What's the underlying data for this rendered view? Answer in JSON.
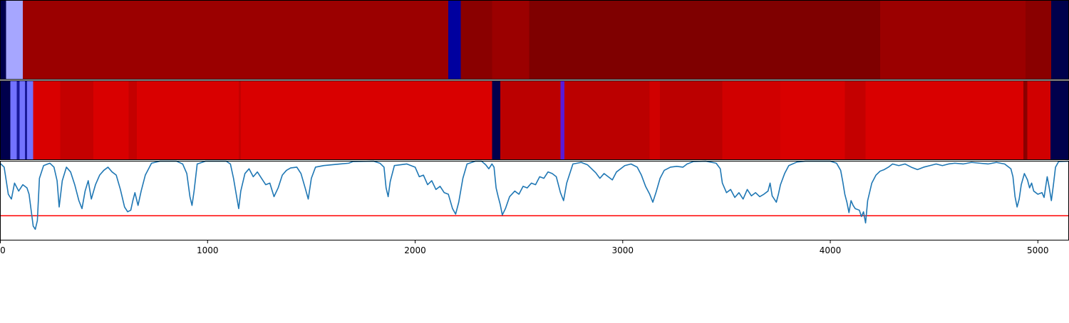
{
  "chart_data": {
    "type": "heatmap",
    "xlim": [
      0,
      5150
    ],
    "x_ticks": [
      "0",
      "1000",
      "2000",
      "3000",
      "4000",
      "5000"
    ],
    "tracks": [
      {
        "name": "",
        "segments": [
          {
            "start": 0,
            "end": 30,
            "color": "#00004c"
          },
          {
            "start": 30,
            "end": 110,
            "color": "#a6a6ff"
          },
          {
            "start": 110,
            "end": 2160,
            "color": "#9b0000"
          },
          {
            "start": 2160,
            "end": 2220,
            "color": "#00009f"
          },
          {
            "start": 2220,
            "end": 2370,
            "color": "#8a0000"
          },
          {
            "start": 2370,
            "end": 2550,
            "color": "#9b0000"
          },
          {
            "start": 2550,
            "end": 4240,
            "color": "#7f0000"
          },
          {
            "start": 4240,
            "end": 4940,
            "color": "#9b0000"
          },
          {
            "start": 4940,
            "end": 5065,
            "color": "#8a0000"
          },
          {
            "start": 5065,
            "end": 5150,
            "color": "#00004c"
          }
        ]
      },
      {
        "name": "",
        "segments": [
          {
            "start": 0,
            "end": 50,
            "color": "#00004c"
          },
          {
            "start": 50,
            "end": 80,
            "color": "#7373ff"
          },
          {
            "start": 80,
            "end": 95,
            "color": "#1a1a9a"
          },
          {
            "start": 95,
            "end": 120,
            "color": "#7373ff"
          },
          {
            "start": 120,
            "end": 130,
            "color": "#1a1a9a"
          },
          {
            "start": 130,
            "end": 160,
            "color": "#7373ff"
          },
          {
            "start": 160,
            "end": 290,
            "color": "#d90000"
          },
          {
            "start": 290,
            "end": 450,
            "color": "#c40000"
          },
          {
            "start": 450,
            "end": 620,
            "color": "#d90000"
          },
          {
            "start": 620,
            "end": 660,
            "color": "#c40000"
          },
          {
            "start": 660,
            "end": 1150,
            "color": "#d90000"
          },
          {
            "start": 1150,
            "end": 1160,
            "color": "#c40000"
          },
          {
            "start": 1160,
            "end": 2370,
            "color": "#d90000"
          },
          {
            "start": 2370,
            "end": 2410,
            "color": "#00004c"
          },
          {
            "start": 2410,
            "end": 2700,
            "color": "#bb0000"
          },
          {
            "start": 2700,
            "end": 2720,
            "color": "#5a1ad8"
          },
          {
            "start": 2720,
            "end": 3130,
            "color": "#bb0000"
          },
          {
            "start": 3130,
            "end": 3180,
            "color": "#d00000"
          },
          {
            "start": 3180,
            "end": 3480,
            "color": "#bb0000"
          },
          {
            "start": 3480,
            "end": 3760,
            "color": "#d00000"
          },
          {
            "start": 3760,
            "end": 4070,
            "color": "#d90000"
          },
          {
            "start": 4070,
            "end": 4170,
            "color": "#c40000"
          },
          {
            "start": 4170,
            "end": 4930,
            "color": "#d90000"
          },
          {
            "start": 4930,
            "end": 4950,
            "color": "#8a0000"
          },
          {
            "start": 4950,
            "end": 5060,
            "color": "#d00000"
          },
          {
            "start": 5060,
            "end": 5150,
            "color": "#00004c"
          }
        ]
      }
    ],
    "line": {
      "color": "#1f77b4",
      "ylim": [
        0,
        1
      ],
      "threshold": 0.31,
      "threshold_color": "#ff0000",
      "points": [
        [
          0,
          0.97
        ],
        [
          20,
          0.92
        ],
        [
          40,
          0.58
        ],
        [
          55,
          0.52
        ],
        [
          70,
          0.72
        ],
        [
          90,
          0.62
        ],
        [
          110,
          0.7
        ],
        [
          130,
          0.66
        ],
        [
          140,
          0.58
        ],
        [
          150,
          0.38
        ],
        [
          160,
          0.18
        ],
        [
          170,
          0.14
        ],
        [
          180,
          0.25
        ],
        [
          190,
          0.78
        ],
        [
          210,
          0.94
        ],
        [
          240,
          0.97
        ],
        [
          260,
          0.92
        ],
        [
          275,
          0.75
        ],
        [
          285,
          0.42
        ],
        [
          300,
          0.75
        ],
        [
          320,
          0.92
        ],
        [
          340,
          0.86
        ],
        [
          360,
          0.7
        ],
        [
          380,
          0.5
        ],
        [
          395,
          0.4
        ],
        [
          410,
          0.62
        ],
        [
          425,
          0.75
        ],
        [
          440,
          0.52
        ],
        [
          460,
          0.7
        ],
        [
          480,
          0.82
        ],
        [
          500,
          0.88
        ],
        [
          520,
          0.92
        ],
        [
          540,
          0.86
        ],
        [
          560,
          0.82
        ],
        [
          580,
          0.64
        ],
        [
          600,
          0.42
        ],
        [
          615,
          0.36
        ],
        [
          630,
          0.38
        ],
        [
          640,
          0.5
        ],
        [
          650,
          0.6
        ],
        [
          665,
          0.44
        ],
        [
          680,
          0.62
        ],
        [
          700,
          0.82
        ],
        [
          730,
          0.97
        ],
        [
          770,
          0.995
        ],
        [
          850,
          0.995
        ],
        [
          880,
          0.96
        ],
        [
          900,
          0.84
        ],
        [
          915,
          0.55
        ],
        [
          925,
          0.44
        ],
        [
          935,
          0.62
        ],
        [
          950,
          0.96
        ],
        [
          990,
          0.995
        ],
        [
          1090,
          0.995
        ],
        [
          1110,
          0.96
        ],
        [
          1125,
          0.78
        ],
        [
          1140,
          0.55
        ],
        [
          1150,
          0.4
        ],
        [
          1160,
          0.62
        ],
        [
          1180,
          0.84
        ],
        [
          1200,
          0.9
        ],
        [
          1220,
          0.8
        ],
        [
          1240,
          0.86
        ],
        [
          1260,
          0.78
        ],
        [
          1280,
          0.7
        ],
        [
          1300,
          0.72
        ],
        [
          1320,
          0.55
        ],
        [
          1340,
          0.66
        ],
        [
          1360,
          0.82
        ],
        [
          1380,
          0.88
        ],
        [
          1400,
          0.91
        ],
        [
          1430,
          0.92
        ],
        [
          1450,
          0.84
        ],
        [
          1470,
          0.66
        ],
        [
          1485,
          0.52
        ],
        [
          1500,
          0.78
        ],
        [
          1520,
          0.92
        ],
        [
          1560,
          0.94
        ],
        [
          1600,
          0.95
        ],
        [
          1640,
          0.96
        ],
        [
          1680,
          0.97
        ],
        [
          1700,
          0.99
        ],
        [
          1800,
          0.995
        ],
        [
          1830,
          0.97
        ],
        [
          1850,
          0.92
        ],
        [
          1860,
          0.66
        ],
        [
          1870,
          0.55
        ],
        [
          1880,
          0.74
        ],
        [
          1900,
          0.94
        ],
        [
          1960,
          0.96
        ],
        [
          2000,
          0.92
        ],
        [
          2020,
          0.8
        ],
        [
          2040,
          0.82
        ],
        [
          2060,
          0.7
        ],
        [
          2080,
          0.75
        ],
        [
          2100,
          0.64
        ],
        [
          2120,
          0.68
        ],
        [
          2140,
          0.6
        ],
        [
          2160,
          0.58
        ],
        [
          2180,
          0.4
        ],
        [
          2195,
          0.33
        ],
        [
          2210,
          0.48
        ],
        [
          2230,
          0.78
        ],
        [
          2250,
          0.96
        ],
        [
          2290,
          0.995
        ],
        [
          2320,
          0.995
        ],
        [
          2340,
          0.95
        ],
        [
          2355,
          0.9
        ],
        [
          2370,
          0.96
        ],
        [
          2380,
          0.92
        ],
        [
          2390,
          0.66
        ],
        [
          2400,
          0.55
        ],
        [
          2410,
          0.45
        ],
        [
          2420,
          0.32
        ],
        [
          2435,
          0.4
        ],
        [
          2455,
          0.55
        ],
        [
          2480,
          0.62
        ],
        [
          2500,
          0.58
        ],
        [
          2520,
          0.68
        ],
        [
          2540,
          0.66
        ],
        [
          2560,
          0.72
        ],
        [
          2580,
          0.7
        ],
        [
          2600,
          0.8
        ],
        [
          2620,
          0.78
        ],
        [
          2640,
          0.86
        ],
        [
          2660,
          0.84
        ],
        [
          2680,
          0.8
        ],
        [
          2700,
          0.6
        ],
        [
          2715,
          0.5
        ],
        [
          2730,
          0.72
        ],
        [
          2760,
          0.96
        ],
        [
          2800,
          0.98
        ],
        [
          2830,
          0.95
        ],
        [
          2850,
          0.9
        ],
        [
          2870,
          0.85
        ],
        [
          2890,
          0.78
        ],
        [
          2910,
          0.84
        ],
        [
          2930,
          0.8
        ],
        [
          2950,
          0.76
        ],
        [
          2970,
          0.86
        ],
        [
          2990,
          0.9
        ],
        [
          3010,
          0.94
        ],
        [
          3040,
          0.96
        ],
        [
          3070,
          0.92
        ],
        [
          3090,
          0.82
        ],
        [
          3110,
          0.68
        ],
        [
          3130,
          0.58
        ],
        [
          3145,
          0.48
        ],
        [
          3160,
          0.6
        ],
        [
          3180,
          0.78
        ],
        [
          3200,
          0.88
        ],
        [
          3230,
          0.92
        ],
        [
          3260,
          0.93
        ],
        [
          3290,
          0.92
        ],
        [
          3310,
          0.96
        ],
        [
          3340,
          0.99
        ],
        [
          3400,
          0.995
        ],
        [
          3450,
          0.97
        ],
        [
          3470,
          0.9
        ],
        [
          3480,
          0.72
        ],
        [
          3500,
          0.6
        ],
        [
          3520,
          0.64
        ],
        [
          3540,
          0.54
        ],
        [
          3560,
          0.6
        ],
        [
          3580,
          0.52
        ],
        [
          3600,
          0.64
        ],
        [
          3620,
          0.56
        ],
        [
          3640,
          0.6
        ],
        [
          3660,
          0.55
        ],
        [
          3680,
          0.58
        ],
        [
          3700,
          0.62
        ],
        [
          3710,
          0.72
        ],
        [
          3720,
          0.56
        ],
        [
          3740,
          0.48
        ],
        [
          3750,
          0.58
        ],
        [
          3760,
          0.7
        ],
        [
          3780,
          0.84
        ],
        [
          3800,
          0.94
        ],
        [
          3840,
          0.985
        ],
        [
          3880,
          0.995
        ],
        [
          4000,
          0.995
        ],
        [
          4030,
          0.97
        ],
        [
          4050,
          0.88
        ],
        [
          4060,
          0.74
        ],
        [
          4070,
          0.58
        ],
        [
          4080,
          0.48
        ],
        [
          4090,
          0.35
        ],
        [
          4100,
          0.5
        ],
        [
          4110,
          0.44
        ],
        [
          4120,
          0.4
        ],
        [
          4140,
          0.38
        ],
        [
          4150,
          0.3
        ],
        [
          4160,
          0.36
        ],
        [
          4170,
          0.22
        ],
        [
          4180,
          0.5
        ],
        [
          4200,
          0.72
        ],
        [
          4220,
          0.82
        ],
        [
          4240,
          0.87
        ],
        [
          4260,
          0.89
        ],
        [
          4280,
          0.92
        ],
        [
          4300,
          0.96
        ],
        [
          4330,
          0.94
        ],
        [
          4360,
          0.96
        ],
        [
          4390,
          0.92
        ],
        [
          4420,
          0.89
        ],
        [
          4450,
          0.92
        ],
        [
          4480,
          0.94
        ],
        [
          4510,
          0.96
        ],
        [
          4540,
          0.94
        ],
        [
          4570,
          0.96
        ],
        [
          4600,
          0.97
        ],
        [
          4640,
          0.96
        ],
        [
          4680,
          0.98
        ],
        [
          4720,
          0.97
        ],
        [
          4760,
          0.96
        ],
        [
          4800,
          0.98
        ],
        [
          4840,
          0.96
        ],
        [
          4870,
          0.9
        ],
        [
          4880,
          0.8
        ],
        [
          4890,
          0.55
        ],
        [
          4900,
          0.42
        ],
        [
          4910,
          0.52
        ],
        [
          4920,
          0.7
        ],
        [
          4935,
          0.84
        ],
        [
          4950,
          0.76
        ],
        [
          4960,
          0.66
        ],
        [
          4970,
          0.72
        ],
        [
          4980,
          0.62
        ],
        [
          5000,
          0.58
        ],
        [
          5020,
          0.6
        ],
        [
          5030,
          0.54
        ],
        [
          5045,
          0.8
        ],
        [
          5055,
          0.66
        ],
        [
          5065,
          0.5
        ],
        [
          5075,
          0.7
        ],
        [
          5085,
          0.92
        ],
        [
          5100,
          0.99
        ],
        [
          5150,
          0.995
        ]
      ]
    }
  }
}
